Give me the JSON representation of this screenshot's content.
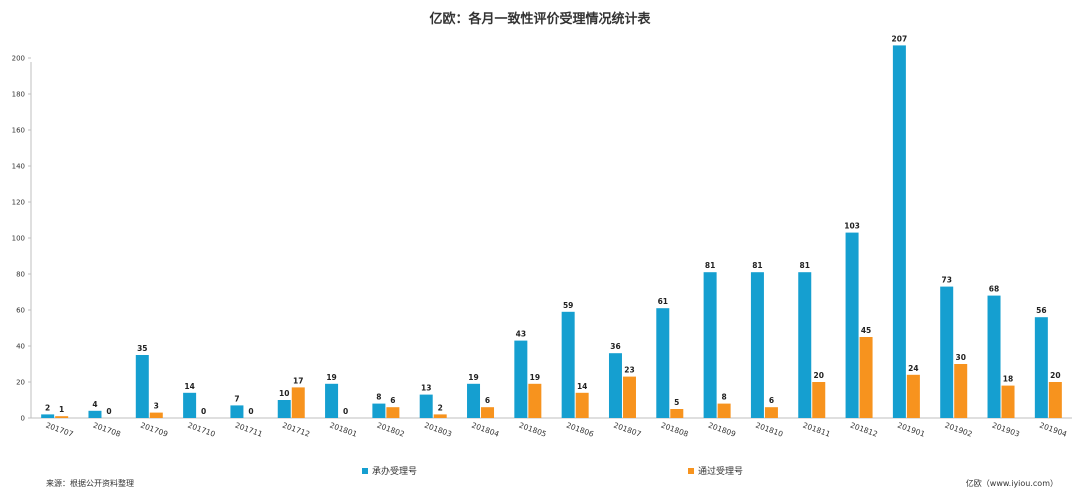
{
  "chart_data": {
    "type": "bar",
    "title": "亿欧：各月一致性评价受理情况统计表",
    "categories": [
      "201707",
      "201708",
      "201709",
      "201710",
      "201711",
      "201712",
      "201801",
      "201802",
      "201803",
      "201804",
      "201805",
      "201806",
      "201807",
      "201808",
      "201809",
      "201810",
      "201811",
      "201812",
      "201901",
      "201902",
      "201903",
      "201904"
    ],
    "series": [
      {
        "name": "承办受理号",
        "color": "#159fd0",
        "values": [
          2,
          4,
          35,
          14,
          7,
          10,
          19,
          8,
          13,
          19,
          43,
          59,
          36,
          61,
          81,
          81,
          81,
          103,
          207,
          73,
          68,
          56
        ]
      },
      {
        "name": "通过受理号",
        "color": "#f7931e",
        "values": [
          1,
          0,
          3,
          0,
          0,
          17,
          0,
          6,
          2,
          6,
          19,
          14,
          23,
          5,
          8,
          6,
          20,
          45,
          24,
          30,
          18,
          20
        ]
      }
    ],
    "ylim": [
      0,
      210
    ],
    "yticks": [
      0,
      20,
      40,
      60,
      80,
      100,
      120,
      140,
      160,
      180,
      200
    ],
    "grid": false,
    "legend_position": "bottom"
  },
  "footer": {
    "source": "来源：根据公开资料整理",
    "brand": "亿欧（www.iyiou.com）"
  }
}
